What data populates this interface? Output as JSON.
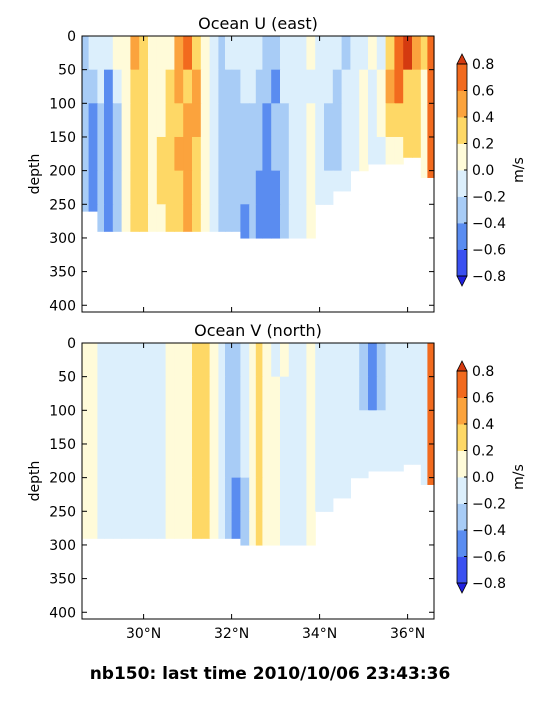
{
  "figure_title": "nb150: last time 2010/10/06 23:43:36",
  "colorbar_levels": [
    -0.8,
    -0.6,
    -0.4,
    -0.2,
    0.0,
    0.2,
    0.4,
    0.6,
    0.8
  ],
  "colorbar_tick_labels": [
    "−0.8",
    "−0.6",
    "−0.4",
    "−0.2",
    "0.0",
    "0.2",
    "0.4",
    "0.6",
    "0.8"
  ],
  "colorbar_colors": [
    "#3a50f0",
    "#5a8cf0",
    "#a8ccf6",
    "#dceffc",
    "#fffbd9",
    "#fed866",
    "#fba33d",
    "#f26a1e"
  ],
  "colorbar_under_color": "#2020e0",
  "colorbar_over_color": "#d43a10",
  "chart_data": [
    {
      "type": "heatmap",
      "title": "Ocean U (east)",
      "ylabel": "depth",
      "colorbar_label": "m/s",
      "ylim": [
        410,
        0
      ],
      "xlim": [
        28.6,
        36.6
      ],
      "yticks": [
        0,
        50,
        100,
        150,
        200,
        250,
        300,
        350,
        400
      ],
      "ytick_labels": [
        "0",
        "50",
        "100",
        "150",
        "200",
        "250",
        "300",
        "350",
        "400"
      ],
      "xticks": [
        30,
        32,
        34,
        36
      ],
      "xtick_labels": [],
      "column_edges_lat": [
        28.6,
        28.75,
        28.95,
        29.1,
        29.3,
        29.5,
        29.7,
        29.9,
        30.1,
        30.3,
        30.5,
        30.7,
        30.9,
        31.1,
        31.3,
        31.5,
        31.7,
        31.85,
        32.0,
        32.2,
        32.4,
        32.55,
        32.7,
        32.9,
        33.1,
        33.3,
        33.5,
        33.7,
        33.9,
        34.1,
        34.3,
        34.5,
        34.7,
        34.9,
        35.1,
        35.3,
        35.5,
        35.7,
        35.9,
        36.1,
        36.3,
        36.45,
        36.6
      ],
      "column_bottom_depth": [
        260,
        260,
        290,
        290,
        290,
        290,
        290,
        290,
        290,
        290,
        290,
        290,
        290,
        290,
        290,
        290,
        290,
        290,
        290,
        305,
        305,
        305,
        305,
        305,
        305,
        305,
        305,
        305,
        250,
        250,
        230,
        230,
        200,
        200,
        190,
        190,
        190,
        190,
        180,
        180,
        210,
        210
      ],
      "row_depths": [
        25,
        75,
        125,
        175,
        225,
        275
      ],
      "values": [
        [
          -0.3,
          -0.1,
          -0.2,
          -0.1,
          0.1,
          0.05,
          0.5,
          0.3,
          0.1,
          0.05,
          0.05,
          0.4,
          0.6,
          0.3,
          0.1,
          -0.1,
          -0.3,
          -0.2,
          -0.1,
          -0.15,
          -0.2,
          -0.1,
          -0.25,
          -0.3,
          -0.2,
          -0.1,
          -0.05,
          0.05,
          -0.05,
          -0.1,
          -0.2,
          -0.3,
          -0.1,
          -0.05,
          0.05,
          -0.1,
          0.3,
          0.7,
          0.8,
          0.4,
          0.3
        ],
        [
          -0.3,
          -0.3,
          -0.1,
          -0.5,
          -0.1,
          0.1,
          0.3,
          0.3,
          0.1,
          0.05,
          0.3,
          0.5,
          0.3,
          0.5,
          0.1,
          -0.1,
          -0.3,
          -0.25,
          -0.3,
          -0.1,
          -0.15,
          -0.3,
          -0.3,
          -0.5,
          -0.2,
          -0.1,
          -0.05,
          -0.1,
          -0.15,
          -0.15,
          -0.3,
          -0.1,
          -0.05,
          0.05,
          -0.1,
          0.1,
          0.5,
          0.6,
          0.3,
          0.3,
          0.1
        ],
        [
          -0.3,
          -0.5,
          -0.3,
          -0.5,
          -0.3,
          0.1,
          0.3,
          0.3,
          0.1,
          0.05,
          0.3,
          0.3,
          0.5,
          0.5,
          0.1,
          -0.1,
          -0.3,
          -0.25,
          -0.3,
          -0.25,
          -0.25,
          -0.3,
          -0.5,
          -0.3,
          -0.3,
          -0.2,
          -0.05,
          0.05,
          -0.15,
          -0.3,
          -0.3,
          -0.1,
          -0.05,
          0.05,
          -0.1,
          0.1,
          0.3,
          0.3,
          0.3,
          0.2,
          0.1
        ],
        [
          -0.3,
          -0.5,
          -0.3,
          -0.6,
          -0.3,
          0.1,
          0.3,
          0.3,
          0.1,
          0.3,
          0.3,
          0.5,
          0.5,
          0.3,
          0.1,
          -0.1,
          -0.3,
          -0.3,
          -0.3,
          -0.3,
          -0.3,
          -0.3,
          -0.5,
          -0.3,
          -0.3,
          -0.2,
          -0.05,
          0.05,
          -0.15,
          -0.3,
          -0.3,
          -0.1,
          -0.05,
          0.05,
          -0.1,
          -0.05,
          0.05,
          0.1,
          0.3,
          0.3,
          0.1
        ],
        [
          -0.3,
          -0.5,
          -0.3,
          -0.6,
          -0.3,
          0.1,
          0.3,
          0.3,
          0.1,
          0.3,
          0.3,
          0.3,
          0.5,
          0.3,
          0.1,
          -0.1,
          -0.3,
          -0.3,
          -0.3,
          -0.3,
          -0.3,
          -0.5,
          -0.5,
          -0.5,
          -0.3,
          -0.2,
          -0.05,
          0.05,
          -0.15,
          -0.15,
          -0.15,
          -0.1,
          -0.05,
          0.05,
          -0.1,
          -0.05,
          0.05,
          0.1,
          0.1,
          0.1,
          0.1
        ],
        [
          -0.3,
          -0.5,
          -0.3,
          -0.6,
          -0.3,
          0.1,
          0.3,
          0.3,
          0.1,
          0.1,
          0.3,
          0.3,
          0.5,
          0.3,
          0.1,
          -0.1,
          -0.3,
          -0.3,
          -0.3,
          -0.5,
          -0.3,
          -0.5,
          -0.5,
          -0.5,
          -0.3,
          -0.2,
          -0.05,
          0.05,
          -0.15,
          -0.15,
          -0.15,
          -0.1,
          -0.05,
          0.05,
          -0.1,
          -0.05,
          0.05,
          0.1,
          0.1,
          0.1,
          0.1
        ]
      ]
    },
    {
      "type": "heatmap",
      "title": "Ocean V (north)",
      "ylabel": "depth",
      "colorbar_label": "m/s",
      "ylim": [
        410,
        0
      ],
      "xlim": [
        28.6,
        36.6
      ],
      "yticks": [
        0,
        50,
        100,
        150,
        200,
        250,
        300,
        350,
        400
      ],
      "ytick_labels": [
        "0",
        "50",
        "100",
        "150",
        "200",
        "250",
        "300",
        "350",
        "400"
      ],
      "xticks": [
        30,
        32,
        34,
        36
      ],
      "xtick_labels": [
        "30°N",
        "32°N",
        "34°N",
        "36°N"
      ],
      "xlabel": "",
      "column_edges_lat": [
        28.6,
        28.75,
        28.95,
        29.1,
        29.3,
        29.5,
        29.7,
        29.9,
        30.1,
        30.3,
        30.5,
        30.7,
        30.9,
        31.1,
        31.3,
        31.5,
        31.7,
        31.85,
        32.0,
        32.2,
        32.4,
        32.55,
        32.7,
        32.9,
        33.1,
        33.3,
        33.5,
        33.7,
        33.9,
        34.1,
        34.3,
        34.5,
        34.7,
        34.9,
        35.1,
        35.3,
        35.5,
        35.7,
        35.9,
        36.1,
        36.3,
        36.45,
        36.6
      ],
      "column_bottom_depth": [
        290,
        290,
        290,
        290,
        290,
        290,
        290,
        290,
        290,
        290,
        290,
        290,
        290,
        290,
        290,
        290,
        290,
        290,
        290,
        305,
        305,
        305,
        305,
        305,
        305,
        305,
        305,
        305,
        250,
        250,
        230,
        230,
        200,
        200,
        190,
        190,
        190,
        190,
        180,
        180,
        210,
        210
      ],
      "row_depths": [
        25,
        75,
        125,
        175,
        225,
        275
      ],
      "values": [
        [
          0.1,
          0.05,
          -0.05,
          -0.1,
          -0.1,
          -0.1,
          -0.1,
          -0.15,
          -0.15,
          -0.1,
          0.05,
          0.05,
          0.1,
          0.3,
          0.3,
          0.1,
          -0.1,
          -0.3,
          -0.25,
          -0.1,
          0.1,
          0.3,
          0.1,
          -0.05,
          0.05,
          -0.1,
          -0.05,
          0.1,
          -0.05,
          -0.1,
          -0.05,
          -0.05,
          -0.2,
          -0.3,
          -0.6,
          -0.3,
          -0.2,
          -0.05,
          -0.1,
          -0.1,
          -0.05
        ],
        [
          0.1,
          0.05,
          -0.05,
          -0.1,
          -0.1,
          -0.1,
          -0.1,
          -0.15,
          -0.15,
          -0.1,
          0.05,
          0.05,
          0.1,
          0.3,
          0.3,
          0.1,
          -0.1,
          -0.3,
          -0.25,
          -0.1,
          0.1,
          0.3,
          0.1,
          0.05,
          -0.05,
          -0.1,
          -0.05,
          0.1,
          -0.05,
          -0.1,
          -0.05,
          -0.05,
          -0.2,
          -0.3,
          -0.5,
          -0.3,
          -0.2,
          -0.05,
          -0.1,
          -0.1,
          -0.05
        ],
        [
          0.1,
          0.05,
          -0.05,
          -0.1,
          -0.1,
          -0.1,
          -0.1,
          -0.15,
          -0.15,
          -0.1,
          0.05,
          0.05,
          0.1,
          0.3,
          0.3,
          0.1,
          -0.1,
          -0.3,
          -0.3,
          -0.1,
          0.1,
          0.3,
          0.1,
          0.05,
          -0.05,
          -0.1,
          -0.05,
          0.1,
          -0.05,
          -0.1,
          -0.05,
          -0.05,
          -0.05,
          -0.1,
          -0.15,
          -0.1,
          -0.05,
          -0.05,
          -0.1,
          -0.1,
          -0.05
        ],
        [
          0.1,
          0.05,
          -0.05,
          -0.1,
          -0.1,
          -0.1,
          -0.1,
          -0.15,
          -0.15,
          -0.1,
          0.05,
          0.05,
          0.1,
          0.3,
          0.3,
          0.1,
          -0.1,
          -0.3,
          -0.3,
          -0.1,
          0.1,
          0.3,
          0.1,
          0.05,
          -0.05,
          -0.1,
          -0.05,
          0.1,
          -0.05,
          -0.1,
          -0.05,
          -0.05,
          -0.05,
          -0.1,
          -0.05,
          -0.1,
          -0.05,
          -0.05,
          -0.1,
          -0.1,
          -0.05
        ],
        [
          0.1,
          0.05,
          -0.05,
          -0.1,
          -0.1,
          -0.1,
          -0.1,
          -0.15,
          -0.15,
          -0.1,
          0.05,
          0.05,
          0.1,
          0.3,
          0.3,
          0.1,
          -0.1,
          -0.3,
          -0.6,
          -0.3,
          0.1,
          0.3,
          0.1,
          0.05,
          -0.05,
          -0.1,
          -0.05,
          0.1,
          -0.05,
          -0.1,
          -0.05,
          -0.05,
          -0.05,
          -0.1,
          -0.05,
          -0.1,
          -0.05,
          -0.05,
          -0.1,
          -0.1,
          -0.05
        ],
        [
          0.1,
          0.05,
          -0.05,
          -0.1,
          -0.1,
          -0.1,
          -0.1,
          -0.15,
          -0.15,
          -0.1,
          0.05,
          0.05,
          0.1,
          0.3,
          0.3,
          0.1,
          -0.1,
          -0.3,
          -0.5,
          -0.3,
          0.1,
          0.3,
          0.1,
          0.05,
          -0.05,
          -0.1,
          -0.05,
          0.1,
          -0.05,
          -0.1,
          -0.05,
          -0.05,
          -0.05,
          -0.1,
          -0.05,
          -0.1,
          -0.05,
          -0.05,
          -0.1,
          -0.1,
          -0.05
        ]
      ]
    }
  ]
}
